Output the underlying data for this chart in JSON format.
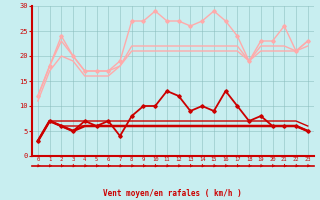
{
  "xlabel": "Vent moyen/en rafales ( km/h )",
  "background_color": "#c8eef0",
  "x": [
    0,
    1,
    2,
    3,
    4,
    5,
    6,
    7,
    8,
    9,
    10,
    11,
    12,
    13,
    14,
    15,
    16,
    17,
    18,
    19,
    20,
    21,
    22,
    23
  ],
  "series": [
    {
      "color": "#ffaaaa",
      "lw": 1.0,
      "marker": "D",
      "ms": 1.8,
      "values": [
        12,
        18,
        24,
        20,
        17,
        17,
        17,
        19,
        27,
        27,
        29,
        27,
        27,
        26,
        27,
        29,
        27,
        24,
        19,
        23,
        23,
        26,
        21,
        23
      ]
    },
    {
      "color": "#ffaaaa",
      "lw": 1.0,
      "marker": "",
      "ms": 0,
      "values": [
        12,
        18,
        23,
        20,
        17,
        17,
        17,
        18,
        22,
        22,
        22,
        22,
        22,
        22,
        22,
        22,
        22,
        22,
        19,
        22,
        22,
        22,
        21,
        23
      ]
    },
    {
      "color": "#ffaaaa",
      "lw": 1.0,
      "marker": "",
      "ms": 0,
      "values": [
        11,
        17,
        20,
        19,
        16,
        16,
        16,
        18,
        21,
        21,
        21,
        21,
        21,
        21,
        21,
        21,
        21,
        21,
        19,
        21,
        21,
        21,
        21,
        22
      ]
    },
    {
      "color": "#cc0000",
      "lw": 1.3,
      "marker": "D",
      "ms": 1.8,
      "values": [
        3,
        7,
        6,
        5,
        7,
        6,
        7,
        4,
        8,
        10,
        10,
        13,
        12,
        9,
        10,
        9,
        13,
        10,
        7,
        8,
        6,
        6,
        6,
        5
      ]
    },
    {
      "color": "#cc0000",
      "lw": 1.0,
      "marker": "",
      "ms": 0,
      "values": [
        3,
        7,
        7,
        7,
        7,
        7,
        7,
        7,
        7,
        7,
        7,
        7,
        7,
        7,
        7,
        7,
        7,
        7,
        7,
        7,
        7,
        7,
        7,
        6
      ]
    },
    {
      "color": "#cc0000",
      "lw": 1.0,
      "marker": "",
      "ms": 0,
      "values": [
        3,
        7,
        6,
        6,
        6,
        6,
        6,
        6,
        6,
        6,
        6,
        6,
        6,
        6,
        6,
        6,
        6,
        6,
        6,
        6,
        6,
        6,
        6,
        5
      ]
    },
    {
      "color": "#cc0000",
      "lw": 1.8,
      "marker": "",
      "ms": 0,
      "values": [
        3,
        7,
        6,
        5,
        6,
        6,
        6,
        6,
        6,
        6,
        6,
        6,
        6,
        6,
        6,
        6,
        6,
        6,
        6,
        6,
        6,
        6,
        6,
        5
      ]
    }
  ],
  "ylim": [
    0,
    30
  ],
  "yticks": [
    0,
    5,
    10,
    15,
    20,
    25,
    30
  ],
  "arrow_symbol": "←",
  "arrow_symbol2": "↙"
}
